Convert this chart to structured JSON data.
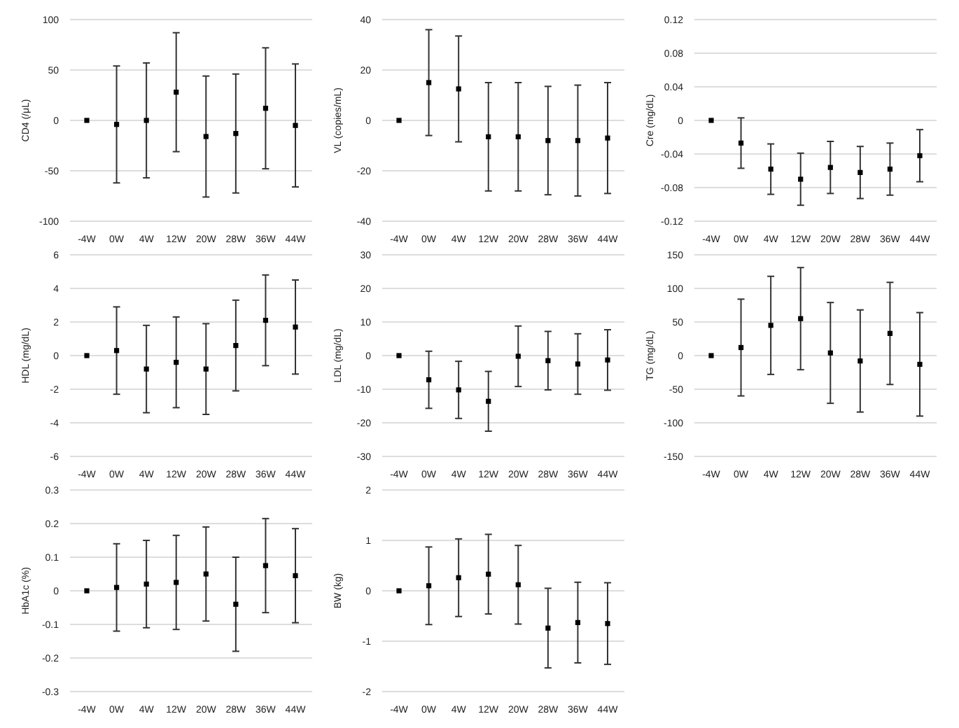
{
  "chart_data": [
    {
      "type": "scatter",
      "ylabel": "CD4 (/μL)",
      "categories": [
        "-4W",
        "0W",
        "4W",
        "12W",
        "20W",
        "28W",
        "36W",
        "44W"
      ],
      "values": [
        0,
        -4,
        0,
        28,
        -16,
        -13,
        12,
        -5
      ],
      "errors": [
        null,
        58,
        57,
        59,
        60,
        59,
        60,
        61
      ],
      "color": "#000000",
      "ylim": [
        -100,
        100
      ],
      "yticks": [
        -100,
        -50,
        0,
        50,
        100
      ],
      "grid": "y",
      "marker": "square"
    },
    {
      "type": "scatter",
      "ylabel": "VL (copies/mL)",
      "categories": [
        "-4W",
        "0W",
        "4W",
        "12W",
        "20W",
        "28W",
        "36W",
        "44W"
      ],
      "values": [
        0,
        15,
        12.5,
        -6.5,
        -6.5,
        -8,
        -8,
        -7
      ],
      "errors": [
        null,
        21,
        21,
        21.5,
        21.5,
        21.5,
        22,
        22
      ],
      "color": "#000000",
      "ylim": [
        -40,
        40
      ],
      "yticks": [
        -40,
        -20,
        0,
        20,
        40
      ],
      "grid": "y",
      "marker": "square"
    },
    {
      "type": "scatter",
      "ylabel": "Cre (mg/dL)",
      "categories": [
        "-4W",
        "0W",
        "4W",
        "12W",
        "20W",
        "28W",
        "36W",
        "44W"
      ],
      "values": [
        0,
        -0.027,
        -0.058,
        -0.07,
        -0.056,
        -0.062,
        -0.058,
        -0.042
      ],
      "errors": [
        null,
        0.03,
        0.03,
        0.031,
        0.031,
        0.031,
        0.031,
        0.031
      ],
      "color": "#000000",
      "ylim": [
        -0.12,
        0.12
      ],
      "yticks": [
        -0.12,
        -0.08,
        -0.04,
        0,
        0.04,
        0.08,
        0.12
      ],
      "grid": "y",
      "marker": "square"
    },
    {
      "type": "scatter",
      "ylabel": "HDL (mg/dL)",
      "categories": [
        "-4W",
        "0W",
        "4W",
        "12W",
        "20W",
        "28W",
        "36W",
        "44W"
      ],
      "values": [
        0,
        0.3,
        -0.8,
        -0.4,
        -0.8,
        0.6,
        2.1,
        1.7
      ],
      "errors": [
        null,
        2.6,
        2.6,
        2.7,
        2.7,
        2.7,
        2.7,
        2.8
      ],
      "color": "#000000",
      "ylim": [
        -6,
        6
      ],
      "yticks": [
        -6,
        -4,
        -2,
        0,
        2,
        4,
        6
      ],
      "grid": "y",
      "marker": "square"
    },
    {
      "type": "scatter",
      "ylabel": "LDL (mg/dL)",
      "categories": [
        "-4W",
        "0W",
        "4W",
        "12W",
        "20W",
        "28W",
        "36W",
        "44W"
      ],
      "values": [
        0,
        -7.2,
        -10.2,
        -13.6,
        -0.2,
        -1.5,
        -2.5,
        -1.3
      ],
      "errors": [
        null,
        8.5,
        8.5,
        8.9,
        9,
        8.7,
        9,
        9
      ],
      "color": "#000000",
      "ylim": [
        -30,
        30
      ],
      "yticks": [
        -30,
        -20,
        -10,
        0,
        10,
        20,
        30
      ],
      "grid": "y",
      "marker": "square"
    },
    {
      "type": "scatter",
      "ylabel": "TG (mg/dL)",
      "categories": [
        "-4W",
        "0W",
        "4W",
        "12W",
        "20W",
        "28W",
        "36W",
        "44W"
      ],
      "values": [
        0,
        12,
        45,
        55,
        4,
        -8,
        33,
        -13
      ],
      "errors": [
        null,
        72,
        73,
        76,
        75,
        76,
        76,
        77
      ],
      "color": "#000000",
      "ylim": [
        -150,
        150
      ],
      "yticks": [
        -150,
        -100,
        -50,
        0,
        50,
        100,
        150
      ],
      "grid": "y",
      "marker": "square"
    },
    {
      "type": "scatter",
      "ylabel": "HbA1c (%)",
      "categories": [
        "-4W",
        "0W",
        "4W",
        "12W",
        "20W",
        "28W",
        "36W",
        "44W"
      ],
      "values": [
        0,
        0.01,
        0.02,
        0.025,
        0.05,
        -0.04,
        0.075,
        0.045
      ],
      "errors": [
        null,
        0.13,
        0.13,
        0.14,
        0.14,
        0.14,
        0.14,
        0.14
      ],
      "color": "#000000",
      "ylim": [
        -0.3,
        0.3
      ],
      "yticks": [
        -0.3,
        -0.2,
        -0.1,
        0,
        0.1,
        0.2,
        0.3
      ],
      "grid": "y",
      "marker": "square"
    },
    {
      "type": "scatter",
      "ylabel": "BW (kg)",
      "categories": [
        "-4W",
        "0W",
        "4W",
        "12W",
        "20W",
        "28W",
        "36W",
        "44W"
      ],
      "values": [
        0,
        0.1,
        0.26,
        0.33,
        0.12,
        -0.74,
        -0.63,
        -0.65
      ],
      "errors": [
        null,
        0.77,
        0.77,
        0.79,
        0.78,
        0.79,
        0.8,
        0.81
      ],
      "color": "#000000",
      "ylim": [
        -2,
        2
      ],
      "yticks": [
        -2,
        -1,
        0,
        1,
        2
      ],
      "grid": "y",
      "marker": "square"
    }
  ]
}
